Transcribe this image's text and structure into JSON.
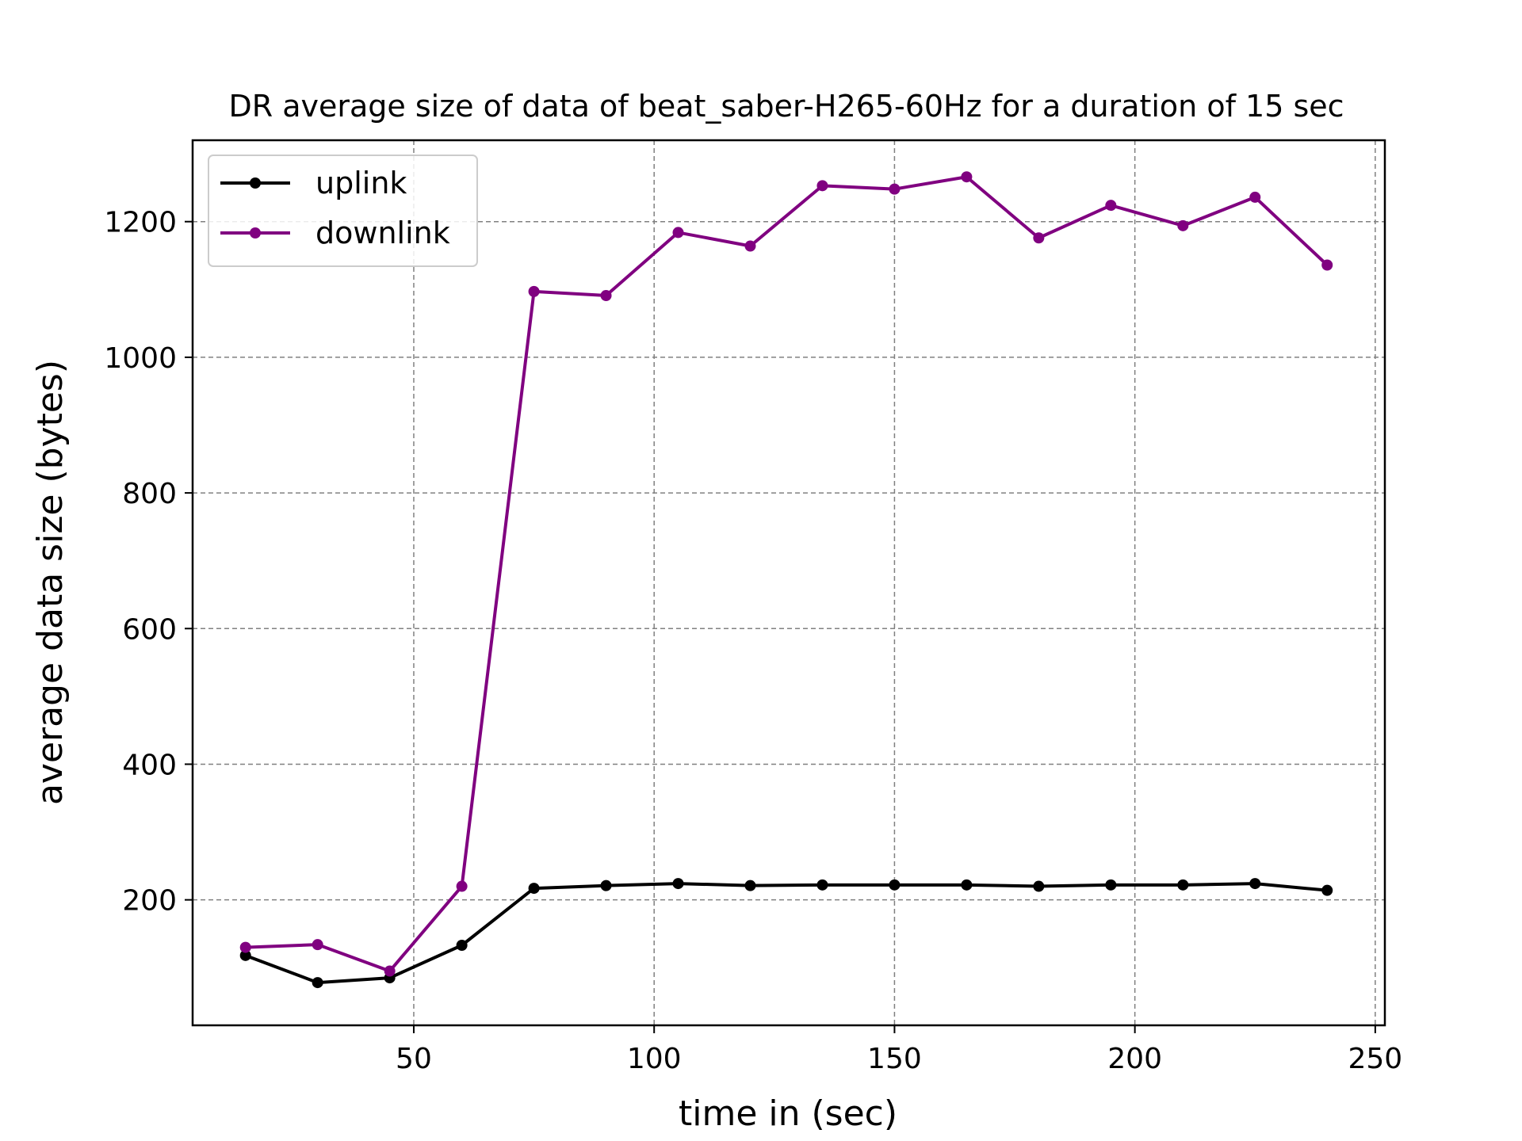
{
  "chart_data": {
    "type": "line",
    "title": "DR average size of data of beat_saber-H265-60Hz for a duration of 15 sec",
    "xlabel": "time in (sec)",
    "ylabel": "average data size (bytes)",
    "xlim": [
      4,
      252
    ],
    "ylim": [
      15,
      1320
    ],
    "xticks": [
      50,
      100,
      150,
      200,
      250
    ],
    "yticks": [
      200,
      400,
      600,
      800,
      1000,
      1200
    ],
    "grid": true,
    "grid_style": "dashed",
    "legend_position": "upper-left",
    "x": [
      15,
      30,
      45,
      60,
      75,
      90,
      105,
      120,
      135,
      150,
      165,
      180,
      195,
      210,
      225,
      240
    ],
    "series": [
      {
        "name": "uplink",
        "color": "#000000",
        "marker": "circle",
        "values": [
          118,
          78,
          85,
          133,
          217,
          221,
          224,
          221,
          222,
          222,
          222,
          220,
          222,
          222,
          224,
          214
        ]
      },
      {
        "name": "downlink",
        "color": "#800080",
        "marker": "circle",
        "values": [
          130,
          134,
          95,
          220,
          1097,
          1091,
          1184,
          1164,
          1253,
          1248,
          1266,
          1176,
          1224,
          1194,
          1236,
          1136
        ]
      }
    ]
  }
}
